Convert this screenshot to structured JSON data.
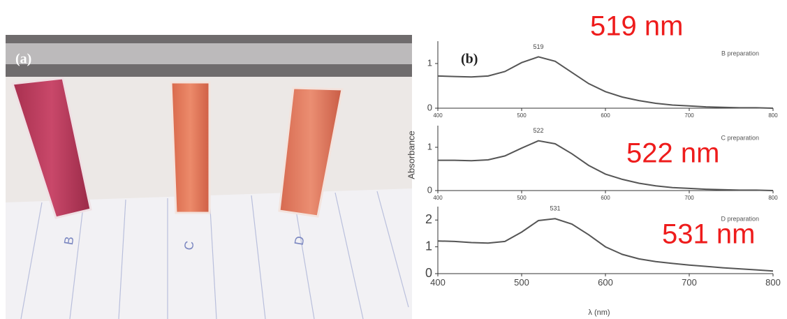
{
  "panel_a": {
    "label": "(a)",
    "cuvette_labels": [
      "B",
      "C",
      "D"
    ]
  },
  "panel_b_label": "(b)",
  "y_axis_label": "Absorbance",
  "x_axis_label": "λ (nm)",
  "overlay_labels": [
    "519 nm",
    "522 nm",
    "531 nm"
  ],
  "chart_data": [
    {
      "type": "line",
      "annotation": "519",
      "x": [
        400,
        420,
        440,
        460,
        480,
        500,
        520,
        540,
        560,
        580,
        600,
        620,
        640,
        660,
        680,
        700,
        720,
        740,
        760,
        780,
        800
      ],
      "series": [
        {
          "name": "B preparation",
          "color": "#555555",
          "values": [
            0.72,
            0.71,
            0.7,
            0.72,
            0.82,
            1.02,
            1.15,
            1.05,
            0.8,
            0.55,
            0.37,
            0.25,
            0.17,
            0.11,
            0.07,
            0.05,
            0.03,
            0.02,
            0.01,
            0.01,
            0.0
          ]
        }
      ],
      "xlim": [
        400,
        800
      ],
      "xticks": [
        400,
        500,
        600,
        700,
        800
      ],
      "ylim": [
        0,
        1.5
      ],
      "yticks": [
        0,
        1
      ]
    },
    {
      "type": "line",
      "annotation": "522",
      "x": [
        400,
        420,
        440,
        460,
        480,
        500,
        520,
        540,
        560,
        580,
        600,
        620,
        640,
        660,
        680,
        700,
        720,
        740,
        760,
        780,
        800
      ],
      "series": [
        {
          "name": "C preparation",
          "color": "#555555",
          "values": [
            0.7,
            0.7,
            0.69,
            0.71,
            0.8,
            0.98,
            1.15,
            1.08,
            0.85,
            0.58,
            0.38,
            0.26,
            0.17,
            0.11,
            0.07,
            0.05,
            0.03,
            0.02,
            0.01,
            0.01,
            0.0
          ]
        }
      ],
      "xlim": [
        400,
        800
      ],
      "xticks": [
        400,
        500,
        600,
        700,
        800
      ],
      "ylim": [
        0,
        1.5
      ],
      "yticks": [
        0,
        1
      ]
    },
    {
      "type": "line",
      "annotation": "531",
      "x": [
        400,
        420,
        440,
        460,
        480,
        500,
        520,
        540,
        560,
        580,
        600,
        620,
        640,
        660,
        680,
        700,
        720,
        740,
        760,
        780,
        800
      ],
      "series": [
        {
          "name": "D preparation",
          "color": "#555555",
          "values": [
            1.22,
            1.2,
            1.16,
            1.14,
            1.2,
            1.55,
            1.98,
            2.05,
            1.85,
            1.45,
            1.0,
            0.72,
            0.55,
            0.45,
            0.38,
            0.32,
            0.27,
            0.22,
            0.18,
            0.14,
            0.1
          ]
        }
      ],
      "xlim": [
        400,
        800
      ],
      "xticks": [
        400,
        500,
        600,
        700,
        800
      ],
      "ylim": [
        0,
        2.5
      ],
      "yticks": [
        0,
        1,
        2
      ]
    }
  ]
}
